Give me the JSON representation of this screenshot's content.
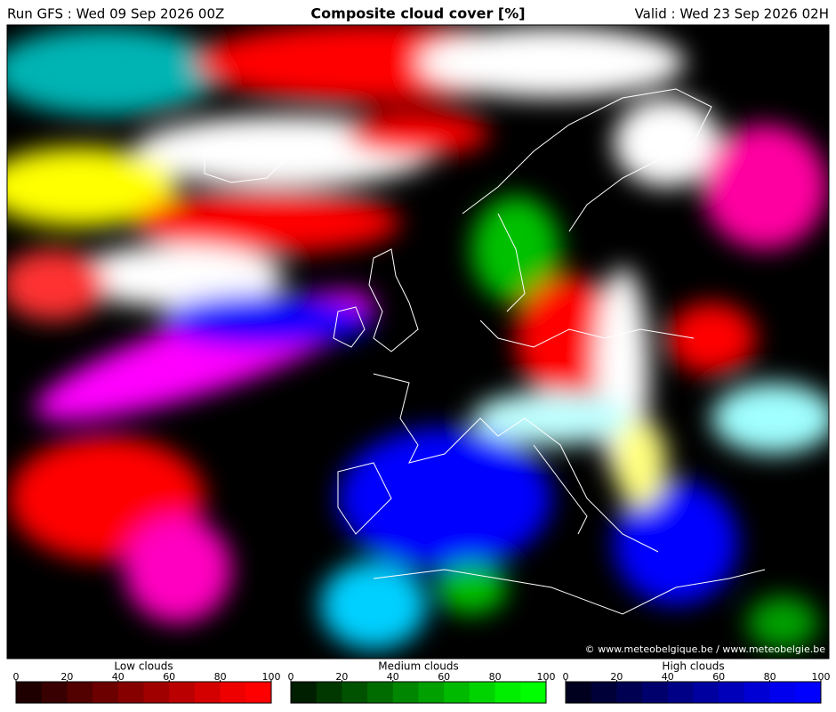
{
  "header": {
    "run": "Run GFS : Wed 09 Sep 2026 00Z",
    "title": "Composite cloud cover [%]",
    "valid": "Valid : Wed 23 Sep 2026 02H"
  },
  "copyright": "© www.meteobelgique.be / www.meteobelgie.be",
  "legends": [
    {
      "title": "Low clouds",
      "lim": [
        0,
        100
      ],
      "ticks": [
        0,
        20,
        40,
        60,
        80,
        100
      ],
      "colors": [
        "#1e0000",
        "#380000",
        "#520000",
        "#6c0000",
        "#860000",
        "#a00000",
        "#ba0000",
        "#d40000",
        "#ee0000",
        "#ff0000"
      ]
    },
    {
      "title": "Medium clouds",
      "lim": [
        0,
        100
      ],
      "ticks": [
        0,
        20,
        40,
        60,
        80,
        100
      ],
      "colors": [
        "#001e00",
        "#003800",
        "#005200",
        "#006c00",
        "#008600",
        "#00a000",
        "#00ba00",
        "#00d400",
        "#00ee00",
        "#00ff00"
      ]
    },
    {
      "title": "High clouds",
      "lim": [
        0,
        100
      ],
      "ticks": [
        0,
        20,
        40,
        60,
        80,
        100
      ],
      "colors": [
        "#00001e",
        "#000038",
        "#000052",
        "#00006c",
        "#000086",
        "#0000a0",
        "#0000ba",
        "#0000d4",
        "#0000ee",
        "#0000ff"
      ]
    }
  ]
}
